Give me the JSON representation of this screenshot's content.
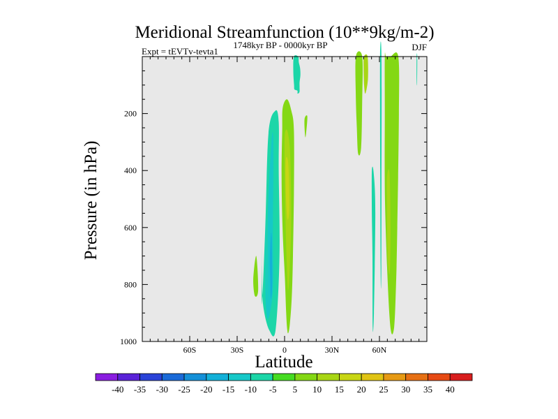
{
  "chart_data": {
    "type": "contour",
    "title": "Meridional Streamfunction (10**9kg/m-2)",
    "subtitle_left": "Expt = tEVTv-tevta1",
    "subtitle_center": "1748kyr BP - 0000kyr BP",
    "subtitle_right": "DJF",
    "xlabel": "Latitude",
    "ylabel": "Pressure (in hPa)",
    "xlim": [
      -90,
      90
    ],
    "ylim": [
      1000,
      0
    ],
    "x_ticks": [
      {
        "value": -60,
        "label": "60S"
      },
      {
        "value": -30,
        "label": "30S"
      },
      {
        "value": 0,
        "label": "0"
      },
      {
        "value": 30,
        "label": "30N"
      },
      {
        "value": 60,
        "label": "60N"
      }
    ],
    "y_ticks": [
      {
        "value": 200,
        "label": "200"
      },
      {
        "value": 400,
        "label": "400"
      },
      {
        "value": 600,
        "label": "600"
      },
      {
        "value": 800,
        "label": "800"
      },
      {
        "value": 1000,
        "label": "1000"
      }
    ],
    "background_color": "#e8e8e8",
    "colorbar": {
      "labels": [
        "-40",
        "-35",
        "-30",
        "-25",
        "-20",
        "-15",
        "-10",
        "-5",
        "5",
        "10",
        "15",
        "20",
        "25",
        "30",
        "35",
        "40"
      ],
      "colors": [
        "#8a1de0",
        "#5a22d8",
        "#2a43d8",
        "#1a6ad8",
        "#1490d8",
        "#13b0d8",
        "#16c8c8",
        "#1cd6a8",
        "#46dc22",
        "#84d814",
        "#a8d614",
        "#c8d614",
        "#e0c414",
        "#e69a14",
        "#e67014",
        "#e64a14",
        "#d81e1e"
      ]
    },
    "regions": [
      {
        "name": "southern-cell-outer",
        "value": -10,
        "color": "#1cd6a8",
        "lat": [
          -14.4,
          -12.2,
          -10.2,
          -5.8,
          -3.7,
          -3.7,
          -3.2,
          -5.7,
          -9.7,
          -13.1,
          -14.2,
          -14.0
        ],
        "p": [
          870,
          600,
          270,
          190,
          230,
          400,
          700,
          960,
          960,
          890,
          800,
          600
        ]
      },
      {
        "name": "southern-cell-core",
        "value": -15,
        "color": "#16c8c8",
        "lat": [
          -10.9,
          -10.6,
          -8.3,
          -7.2,
          -7.1,
          -7.4,
          -7.4,
          -10.4,
          -11.9,
          -12.0,
          -11.8
        ],
        "p": [
          870,
          550,
          300,
          280,
          420,
          600,
          820,
          920,
          860,
          720,
          570
        ]
      },
      {
        "name": "southern-cell-min",
        "value": -20,
        "color": "#13b0d8",
        "lat": [
          -9.3,
          -8.3,
          -7.8,
          -8.7,
          -9.1
        ],
        "p": [
          700,
          620,
          790,
          850,
          780
        ]
      },
      {
        "name": "southern-midlat-blob",
        "value": 5,
        "color": "#84d814",
        "lat": [
          -19.8,
          -17.9,
          -16.7,
          -18.8
        ],
        "p": [
          780,
          700,
          820,
          840
        ]
      },
      {
        "name": "equatorial-cell-outer",
        "value": 10,
        "color": "#84d814",
        "lat": [
          -1.2,
          1.6,
          4.3,
          5.9,
          5.9,
          5.3,
          4.5,
          3.3,
          2.4,
          1.7,
          1.0,
          0.2,
          -1.3,
          -1.9,
          -1.5
        ],
        "p": [
          180,
          150,
          190,
          260,
          480,
          700,
          850,
          940,
          970,
          960,
          900,
          780,
          600,
          420,
          260
        ]
      },
      {
        "name": "equatorial-cell-core",
        "value": 15,
        "color": "#a8d614",
        "lat": [
          0.2,
          1.7,
          3.3,
          4.0,
          4.1,
          3.2,
          2.3,
          1.6,
          0.7,
          0.2,
          0.0
        ],
        "p": [
          270,
          260,
          320,
          450,
          600,
          750,
          820,
          760,
          600,
          450,
          340
        ]
      },
      {
        "name": "equatorial-cell-max",
        "value": 20,
        "color": "#c8d614",
        "lat": [
          0.8,
          2.4,
          3.0,
          1.8,
          0.7
        ],
        "p": [
          360,
          380,
          530,
          570,
          470
        ]
      },
      {
        "name": "upper-band-10n",
        "value": -5,
        "color": "#1cd6a8",
        "lat": [
          5.9,
          8.6,
          9.0,
          9.8,
          10.0,
          9.5,
          9.5,
          9.4,
          8.2,
          8.1,
          6.2,
          6.0,
          5.5
        ],
        "p": [
          0,
          0,
          20,
          40,
          65,
          90,
          110,
          125,
          130,
          120,
          115,
          100,
          50
        ]
      },
      {
        "name": "upper-band-13n",
        "value": 5,
        "color": "#84d814",
        "lat": [
          12.6,
          14.4,
          13.6,
          13.0
        ],
        "p": [
          220,
          210,
          270,
          280
        ]
      },
      {
        "name": "band-45n",
        "value": 5,
        "color": "#84d814",
        "lat": [
          45.1,
          49.1,
          49.1,
          48.4,
          46.5,
          45.7,
          45.1
        ],
        "p": [
          0,
          0,
          150,
          320,
          340,
          250,
          150
        ]
      },
      {
        "name": "band-50n",
        "value": 10,
        "color": "#a8d614",
        "lat": [
          50.2,
          52.5,
          52.7,
          51.1,
          50.3,
          50.0
        ],
        "p": [
          0,
          0,
          80,
          130,
          100,
          40
        ]
      },
      {
        "name": "band-57n",
        "value": -5,
        "color": "#1cd6a8",
        "lat": [
          55.2,
          56.4,
          57.4,
          56.5,
          55.7,
          55.6,
          55.2
        ],
        "p": [
          400,
          410,
          550,
          900,
          950,
          700,
          550
        ]
      },
      {
        "name": "band-61n",
        "value": -5,
        "color": "#1cd6a8",
        "lat": [
          60.4,
          61.3,
          61.3,
          61.2,
          60.8,
          60.5
        ],
        "p": [
          0,
          0,
          450,
          760,
          780,
          400
        ]
      },
      {
        "name": "band-65n",
        "value": 10,
        "color": "#84d814",
        "lat": [
          63.4,
          64.2,
          66.9,
          71.9,
          72.3,
          71.3,
          70.5,
          69.3,
          67.2,
          65.3,
          63.5,
          63.4
        ],
        "p": [
          0,
          0,
          0,
          0,
          200,
          600,
          800,
          950,
          960,
          800,
          500,
          200
        ]
      },
      {
        "name": "band-66n-core",
        "value": 15,
        "color": "#a8d614",
        "lat": [
          64.8,
          66.4,
          67.0,
          66.5,
          65.1,
          64.7
        ],
        "p": [
          420,
          410,
          600,
          760,
          700,
          520
        ]
      },
      {
        "name": "polar-sliver",
        "value": -5,
        "color": "#1cd6a8",
        "lat": [
          83.5,
          83.9,
          83.8,
          83.5
        ],
        "p": [
          0,
          0,
          90,
          90
        ]
      }
    ]
  }
}
